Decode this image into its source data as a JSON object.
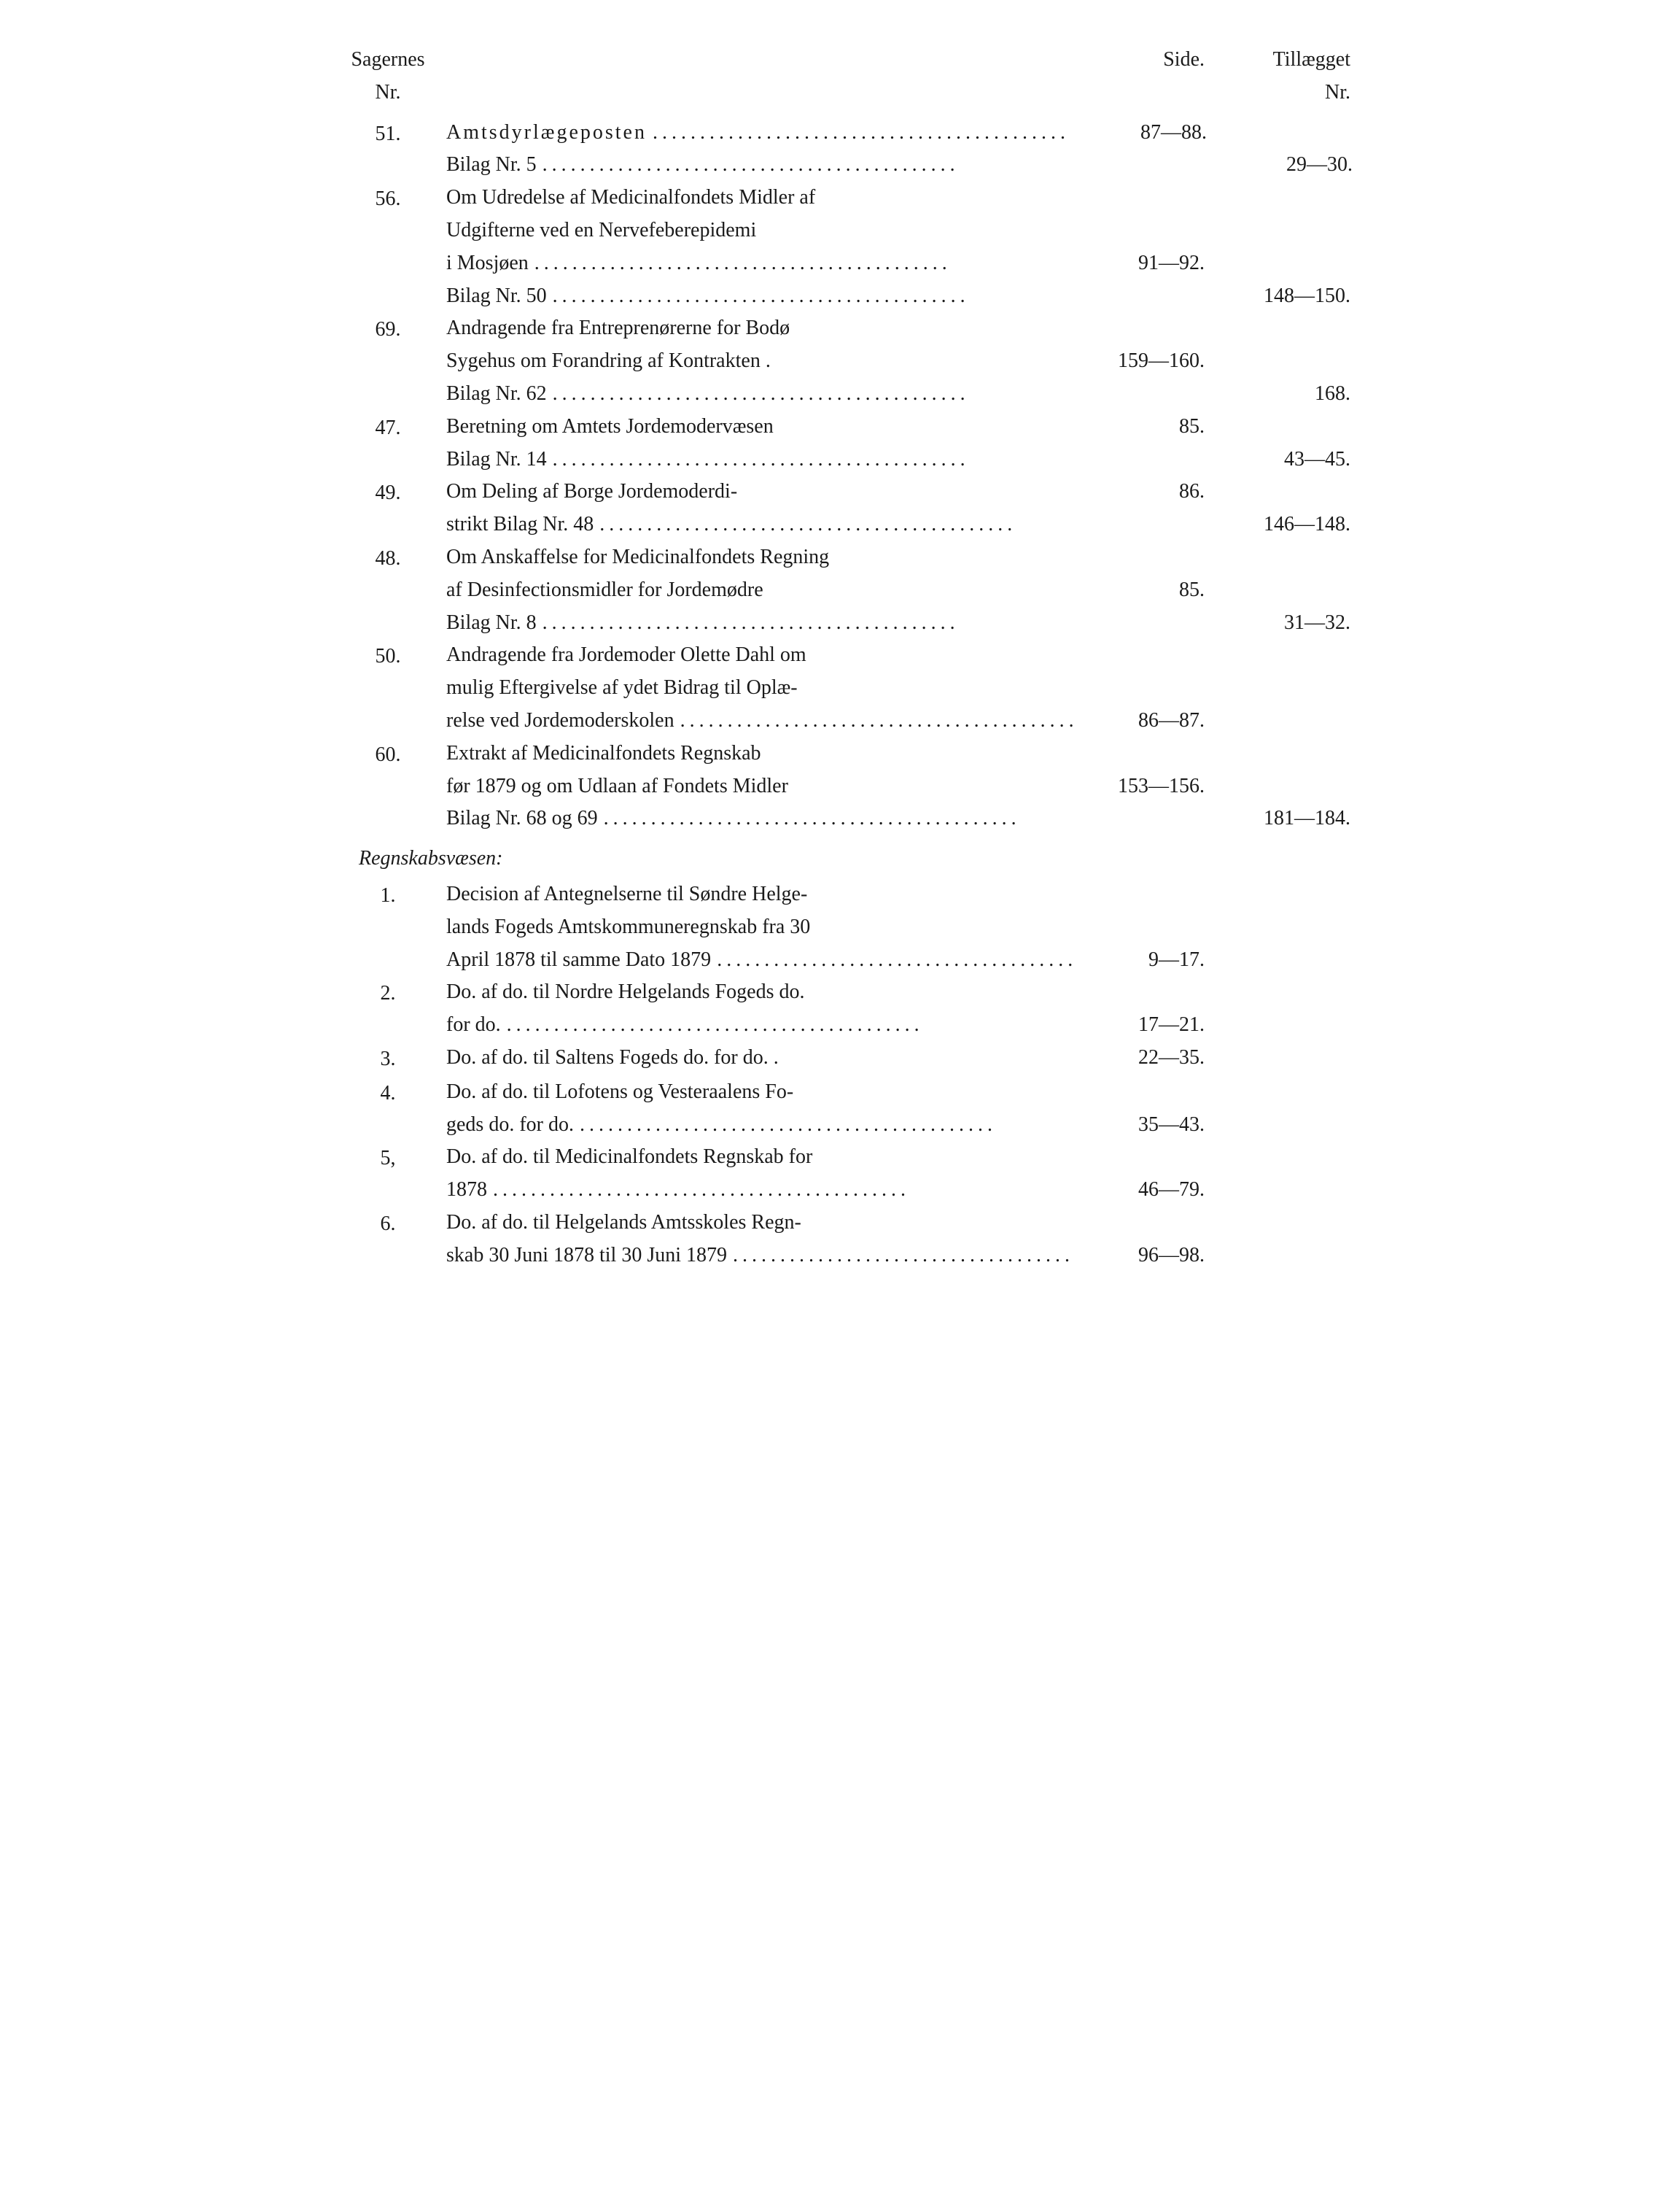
{
  "headers": {
    "sagernes": "Sagernes",
    "nr": "Nr.",
    "side": "Side.",
    "tillaegget": "Tillægget",
    "tillaeg_nr": "Nr."
  },
  "section_heading": "Regnskabsvæsen:",
  "entries": [
    {
      "nr": "51.",
      "lines": [
        {
          "text": "Amtsdyrlægeposten",
          "spaced": true,
          "dots": true,
          "side": "87—88.",
          "tillaeg": ""
        },
        {
          "text": "Bilag Nr. 5",
          "dots": true,
          "side": "",
          "tillaeg": "29—30."
        }
      ]
    },
    {
      "nr": "56.",
      "lines": [
        {
          "text": "Om Udredelse af Medicinalfondets Midler af",
          "dots": false,
          "side": "",
          "tillaeg": ""
        },
        {
          "text": "Udgifterne ved en Nervefeberepidemi",
          "dots": false,
          "side": "",
          "tillaeg": ""
        },
        {
          "text": "i Mosjøen",
          "dots": true,
          "side": "91—92.",
          "tillaeg": ""
        },
        {
          "text": "Bilag Nr. 50",
          "dots": true,
          "side": "",
          "tillaeg": "148—150."
        }
      ]
    },
    {
      "nr": "69.",
      "lines": [
        {
          "text": "Andragende fra Entreprenørerne for Bodø",
          "dots": false,
          "side": "",
          "tillaeg": ""
        },
        {
          "text": "Sygehus om Forandring af Kontrakten .",
          "dots": false,
          "side": "159—160.",
          "tillaeg": ""
        },
        {
          "text": "Bilag Nr. 62",
          "dots": true,
          "side": "",
          "tillaeg": "168."
        }
      ]
    },
    {
      "nr": "47.",
      "lines": [
        {
          "text": "Beretning om Amtets Jordemodervæsen",
          "dots": false,
          "side": "85.",
          "tillaeg": ""
        },
        {
          "text": "Bilag Nr. 14",
          "dots": true,
          "side": "",
          "tillaeg": "43—45."
        }
      ]
    },
    {
      "nr": "49.",
      "lines": [
        {
          "text": "Om Deling af Borge Jordemoderdi-",
          "dots": false,
          "side": "86.",
          "tillaeg": ""
        },
        {
          "text": "strikt Bilag Nr. 48",
          "dots": true,
          "side": "",
          "tillaeg": "146—148."
        }
      ]
    },
    {
      "nr": "48.",
      "lines": [
        {
          "text": "Om Anskaffelse for Medicinalfondets Regning",
          "dots": false,
          "side": "",
          "tillaeg": ""
        },
        {
          "text": "af Desinfectionsmidler for Jordemødre",
          "dots": false,
          "side": "85.",
          "tillaeg": ""
        },
        {
          "text": "Bilag Nr. 8",
          "dots": true,
          "side": "",
          "tillaeg": "31—32."
        }
      ]
    },
    {
      "nr": "50.",
      "lines": [
        {
          "text": "Andragende fra Jordemoder Olette Dahl om",
          "dots": false,
          "side": "",
          "tillaeg": ""
        },
        {
          "text": "mulig Eftergivelse af ydet Bidrag til Oplæ-",
          "dots": false,
          "side": "",
          "tillaeg": ""
        },
        {
          "text": "relse ved Jordemoderskolen",
          "dots": true,
          "side": "86—87.",
          "tillaeg": ""
        }
      ]
    },
    {
      "nr": "60.",
      "lines": [
        {
          "text": "Extrakt af Medicinalfondets Regnskab",
          "dots": false,
          "side": "",
          "tillaeg": ""
        },
        {
          "text": "før 1879 og om Udlaan af Fondets Midler",
          "dots": false,
          "side": "153—156.",
          "tillaeg": ""
        },
        {
          "text": "Bilag Nr. 68 og 69",
          "dots": true,
          "side": "",
          "tillaeg": "181—184."
        }
      ]
    }
  ],
  "entries2": [
    {
      "nr": "1.",
      "lines": [
        {
          "text": "Decision af Antegnelserne til Søndre Helge-",
          "dots": false,
          "side": "",
          "tillaeg": ""
        },
        {
          "text": "lands Fogeds Amtskommuneregnskab fra 30",
          "dots": false,
          "side": "",
          "tillaeg": ""
        },
        {
          "text": "April 1878 til samme Dato 1879",
          "dots": true,
          "side": "9—17.",
          "tillaeg": ""
        }
      ]
    },
    {
      "nr": "2.",
      "lines": [
        {
          "text": "Do. af do. til Nordre Helgelands Fogeds do.",
          "dots": false,
          "side": "",
          "tillaeg": ""
        },
        {
          "text": "for do.",
          "dots": true,
          "side": "17—21.",
          "tillaeg": ""
        }
      ]
    },
    {
      "nr": "3.",
      "lines": [
        {
          "text": "Do. af do. til Saltens Fogeds do. for do. .",
          "dots": false,
          "side": "22—35.",
          "tillaeg": ""
        }
      ]
    },
    {
      "nr": "4.",
      "lines": [
        {
          "text": "Do. af do. til Lofotens og Vesteraalens Fo-",
          "dots": false,
          "side": "",
          "tillaeg": ""
        },
        {
          "text": "geds do. for do.",
          "dots": true,
          "side": "35—43.",
          "tillaeg": ""
        }
      ]
    },
    {
      "nr": "5,",
      "lines": [
        {
          "text": "Do. af do. til Medicinalfondets Regnskab for",
          "dots": false,
          "side": "",
          "tillaeg": ""
        },
        {
          "text": "1878",
          "dots": true,
          "side": "46—79.",
          "tillaeg": ""
        }
      ]
    },
    {
      "nr": "6.",
      "lines": [
        {
          "text": "Do. af do. til Helgelands Amtsskoles Regn-",
          "dots": false,
          "side": "",
          "tillaeg": ""
        },
        {
          "text": "skab 30 Juni 1878 til 30 Juni 1879",
          "dots": true,
          "side": "96—98.",
          "tillaeg": ""
        }
      ]
    }
  ]
}
